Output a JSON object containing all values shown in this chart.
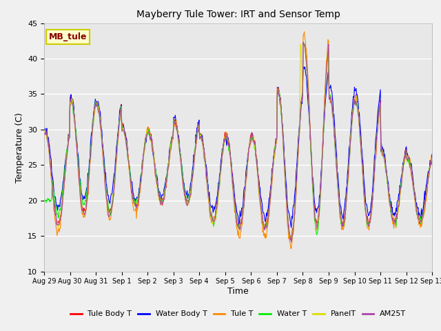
{
  "title": "Mayberry Tule Tower: IRT and Sensor Temp",
  "ylabel": "Temperature (C)",
  "xlabel": "Time",
  "ylim": [
    10,
    45
  ],
  "fig_facecolor": "#f0f0f0",
  "plot_bg_color": "#e8e8e8",
  "annotation_text": "MB_tule",
  "annotation_bg": "#ffffcc",
  "annotation_border": "#cccc00",
  "annotation_text_color": "#880000",
  "series": [
    {
      "name": "Tule Body T",
      "color": "#ff0000"
    },
    {
      "name": "Water Body T",
      "color": "#0000ff"
    },
    {
      "name": "Tule T",
      "color": "#ff8800"
    },
    {
      "name": "Water T",
      "color": "#00ee00"
    },
    {
      "name": "PanelT",
      "color": "#dddd00"
    },
    {
      "name": "AM25T",
      "color": "#aa44aa"
    }
  ],
  "xtick_labels": [
    "Aug 29",
    "Aug 30",
    "Aug 31",
    "Sep 1",
    "Sep 2",
    "Sep 3",
    "Sep 4",
    "Sep 5",
    "Sep 6",
    "Sep 7",
    "Sep 8",
    "Sep 9",
    "Sep 10",
    "Sep 11",
    "Sep 12",
    "Sep 13"
  ],
  "ytick_values": [
    10,
    15,
    20,
    25,
    30,
    35,
    40,
    45
  ],
  "num_days": 15,
  "figsize": [
    6.4,
    4.8
  ],
  "dpi": 100
}
